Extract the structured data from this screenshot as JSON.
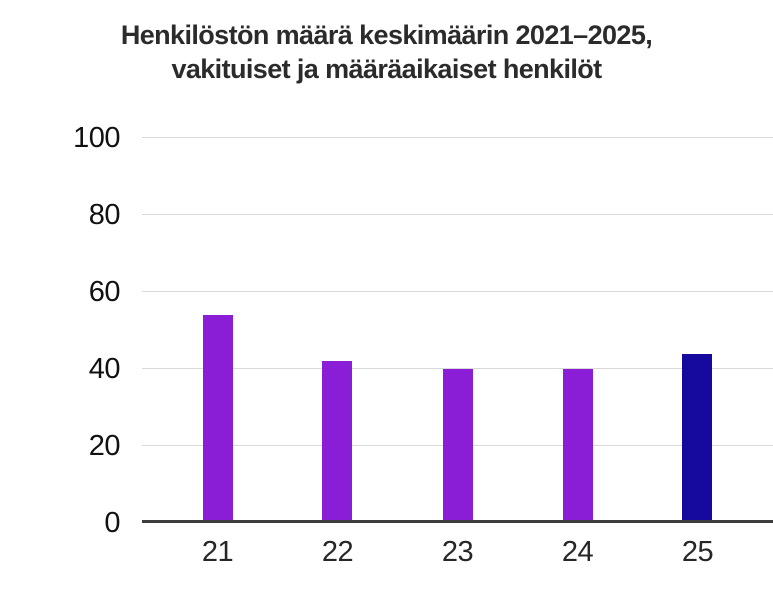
{
  "title": {
    "line1": "Henkilöstön määrä keskimäärin 2021–2025,",
    "line2": "vakituiset ja määräaikaiset henkilöt"
  },
  "colors": {
    "bar_default": "#8a1ed6",
    "bar_highlight": "#15099e",
    "gridline": "#d9d9d9",
    "axis_line": "#3d3d3d",
    "title_text": "#2b2b2b",
    "tick_text": "#111111"
  },
  "chart_data": {
    "type": "bar",
    "title": "Henkilöstön määrä keskimäärin 2021–2025, vakituiset ja määräaikaiset henkilöt",
    "categories": [
      "21",
      "22",
      "23",
      "24",
      "25"
    ],
    "values": [
      54,
      42,
      40,
      40,
      44
    ],
    "bar_colors": [
      "#8a1ed6",
      "#8a1ed6",
      "#8a1ed6",
      "#8a1ed6",
      "#15099e"
    ],
    "xlabel": "",
    "ylabel": "",
    "ylim": [
      0,
      100
    ],
    "yticks": [
      0,
      20,
      40,
      60,
      80,
      100
    ],
    "grid": "horizontal",
    "legend": "none"
  }
}
